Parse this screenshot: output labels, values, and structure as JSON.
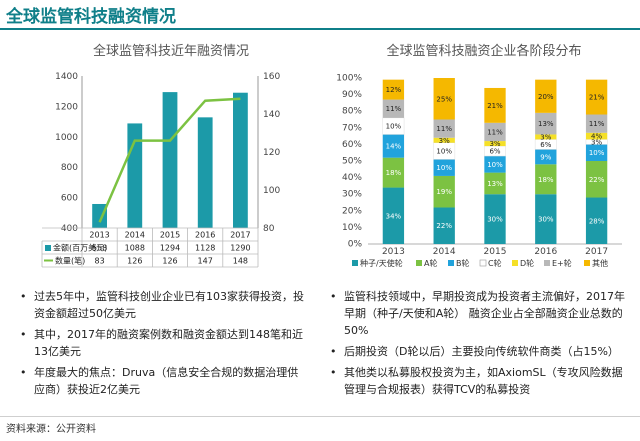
{
  "page": {
    "title": "全球监管科技融资情况",
    "source": "资料来源：公开资料",
    "bullets_left": [
      "过去5年中，监管科技创业企业已有103家获得投资，投资金额超过50亿美元",
      "其中，2017年的融资案例数和融资金额达到148笔和近13亿美元",
      "年度最大的焦点：Druva（信息安全合规的数据治理供应商）获投近2亿美元"
    ],
    "bullets_right": [
      "监管科技领域中，早期投资成为投资者主流偏好，2017年早期（种子/天使和A轮） 融资企业占全部融资企业总数的50%",
      "后期投资（D轮以后）主要投向传统软件商类（占15%）",
      "其他类以私募股权投资为主，如AxiomSL（专攻风险数据管理与合规报表）获得TCV的私募投资"
    ]
  },
  "chart_data": [
    {
      "type": "bar",
      "title": "全球监管科技近年融资情况",
      "categories": [
        "2013",
        "2014",
        "2015",
        "2016",
        "2017"
      ],
      "series": [
        {
          "name": "金额(百万美元)",
          "type": "bar",
          "axis": "left",
          "color": "#1c9aa8",
          "values": [
            558,
            1088,
            1294,
            1128,
            1290
          ]
        },
        {
          "name": "数量(笔)",
          "type": "line",
          "axis": "right",
          "color": "#7cc242",
          "values": [
            83,
            126,
            126,
            147,
            148
          ]
        }
      ],
      "ylim_left": [
        400,
        1400
      ],
      "yticks_left": [
        400,
        600,
        800,
        1000,
        1200,
        1400
      ],
      "ylim_right": [
        80,
        160
      ],
      "yticks_right": [
        80,
        100,
        120,
        140,
        160
      ]
    },
    {
      "type": "bar",
      "stacked": true,
      "title": "全球监管科技融资企业各阶段分布",
      "categories": [
        "2013",
        "2014",
        "2015",
        "2016",
        "2017"
      ],
      "ylim": [
        0,
        100
      ],
      "yticks": [
        "0%",
        "10%",
        "20%",
        "30%",
        "40%",
        "50%",
        "60%",
        "70%",
        "80%",
        "90%",
        "100%"
      ],
      "series": [
        {
          "name": "种子/天使轮",
          "color": "#1c9aa8",
          "values": [
            34,
            22,
            30,
            30,
            28
          ]
        },
        {
          "name": "A轮",
          "color": "#7cc242",
          "values": [
            18,
            19,
            13,
            18,
            22
          ]
        },
        {
          "name": "B轮",
          "color": "#21a3dc",
          "values": [
            14,
            10,
            10,
            9,
            10
          ]
        },
        {
          "name": "C轮",
          "color": "#ffffff",
          "values": [
            10,
            10,
            6,
            6,
            3
          ]
        },
        {
          "name": "D轮",
          "color": "#f5e028",
          "values": [
            0,
            3,
            3,
            3,
            4
          ]
        },
        {
          "name": "E+轮",
          "color": "#b8b8b8",
          "values": [
            11,
            11,
            11,
            13,
            11
          ]
        },
        {
          "name": "其他",
          "color": "#f5b800",
          "values": [
            12,
            25,
            21,
            20,
            21
          ]
        }
      ],
      "labels": [
        [
          "34%",
          "18%",
          "14%",
          "10%",
          "",
          "11%",
          "12%"
        ],
        [
          "22%",
          "19%",
          "10%",
          "10%",
          "3%",
          "11%",
          "25%"
        ],
        [
          "30%",
          "13%",
          "10%",
          "6%",
          "3%",
          "11%",
          "21%"
        ],
        [
          "30%",
          "18%",
          "9%",
          "6%",
          "3%",
          "13%",
          "20%"
        ],
        [
          "28%",
          "22%",
          "10%",
          "3%",
          "4%",
          "11%",
          "21%"
        ]
      ]
    }
  ]
}
